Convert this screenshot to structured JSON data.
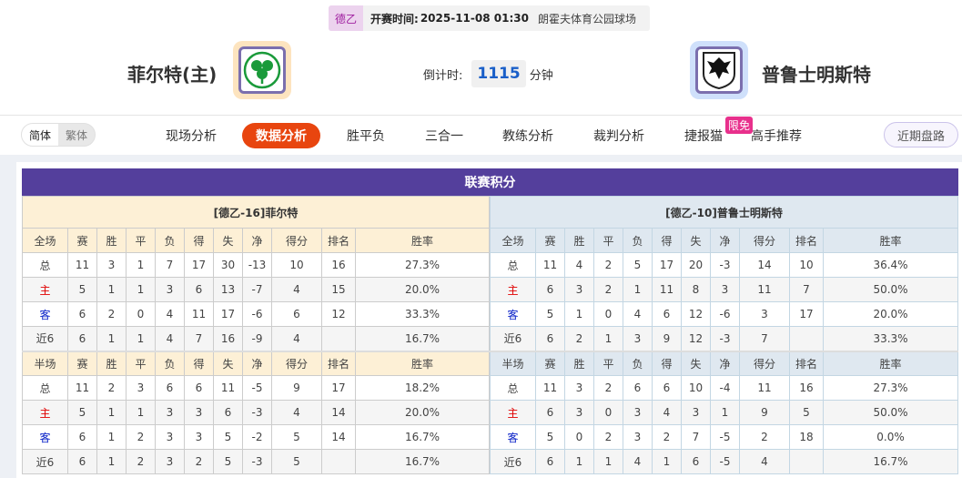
{
  "match": {
    "league": "德乙",
    "time_label": "开赛时间:",
    "time": "2025-11-08 01:30",
    "venue": "朗霍夫体育公园球场"
  },
  "home": {
    "name": "菲尔特(主)",
    "logo": "shamrock-crest"
  },
  "away": {
    "name": "普鲁士明斯特",
    "logo": "eagle-crest"
  },
  "countdown": {
    "label": "倒计时:",
    "value": "1115",
    "unit": "分钟"
  },
  "lang": {
    "simplified": "简体",
    "traditional": "繁体"
  },
  "nav": {
    "items": [
      "现场分析",
      "数据分析",
      "胜平负",
      "三合一",
      "教练分析",
      "裁判分析",
      "捷报猫",
      "高手推荐"
    ],
    "active": "数据分析",
    "badge": "限免",
    "recent": "近期盘路"
  },
  "colors": {
    "title_bg": "#543f9c",
    "active_tab": "#e8450f",
    "home_label": "#e00000",
    "away_label": "#0a22c8"
  },
  "standings": {
    "title": "联赛积分",
    "columns": [
      "赛",
      "胜",
      "平",
      "负",
      "得",
      "失",
      "净",
      "得分",
      "排名",
      "胜率"
    ],
    "full_label": "全场",
    "half_label": "半场",
    "teams": [
      {
        "header": "[德乙-16]菲尔特",
        "full": [
          [
            "总",
            "11",
            "3",
            "1",
            "7",
            "17",
            "30",
            "-13",
            "10",
            "16",
            "27.3%"
          ],
          [
            "主",
            "5",
            "1",
            "1",
            "3",
            "6",
            "13",
            "-7",
            "4",
            "15",
            "20.0%"
          ],
          [
            "客",
            "6",
            "2",
            "0",
            "4",
            "11",
            "17",
            "-6",
            "6",
            "12",
            "33.3%"
          ],
          [
            "近6",
            "6",
            "1",
            "1",
            "4",
            "7",
            "16",
            "-9",
            "4",
            "",
            "16.7%"
          ]
        ],
        "half": [
          [
            "总",
            "11",
            "2",
            "3",
            "6",
            "6",
            "11",
            "-5",
            "9",
            "17",
            "18.2%"
          ],
          [
            "主",
            "5",
            "1",
            "1",
            "3",
            "3",
            "6",
            "-3",
            "4",
            "14",
            "20.0%"
          ],
          [
            "客",
            "6",
            "1",
            "2",
            "3",
            "3",
            "5",
            "-2",
            "5",
            "14",
            "16.7%"
          ],
          [
            "近6",
            "6",
            "1",
            "2",
            "3",
            "2",
            "5",
            "-3",
            "5",
            "",
            "16.7%"
          ]
        ]
      },
      {
        "header": "[德乙-10]普鲁士明斯特",
        "full": [
          [
            "总",
            "11",
            "4",
            "2",
            "5",
            "17",
            "20",
            "-3",
            "14",
            "10",
            "36.4%"
          ],
          [
            "主",
            "6",
            "3",
            "2",
            "1",
            "11",
            "8",
            "3",
            "11",
            "7",
            "50.0%"
          ],
          [
            "客",
            "5",
            "1",
            "0",
            "4",
            "6",
            "12",
            "-6",
            "3",
            "17",
            "20.0%"
          ],
          [
            "近6",
            "6",
            "2",
            "1",
            "3",
            "9",
            "12",
            "-3",
            "7",
            "",
            "33.3%"
          ]
        ],
        "half": [
          [
            "总",
            "11",
            "3",
            "2",
            "6",
            "6",
            "10",
            "-4",
            "11",
            "16",
            "27.3%"
          ],
          [
            "主",
            "6",
            "3",
            "0",
            "3",
            "4",
            "3",
            "1",
            "9",
            "5",
            "50.0%"
          ],
          [
            "客",
            "5",
            "0",
            "2",
            "3",
            "2",
            "7",
            "-5",
            "2",
            "18",
            "0.0%"
          ],
          [
            "近6",
            "6",
            "1",
            "1",
            "4",
            "1",
            "6",
            "-5",
            "4",
            "",
            "16.7%"
          ]
        ]
      }
    ]
  }
}
